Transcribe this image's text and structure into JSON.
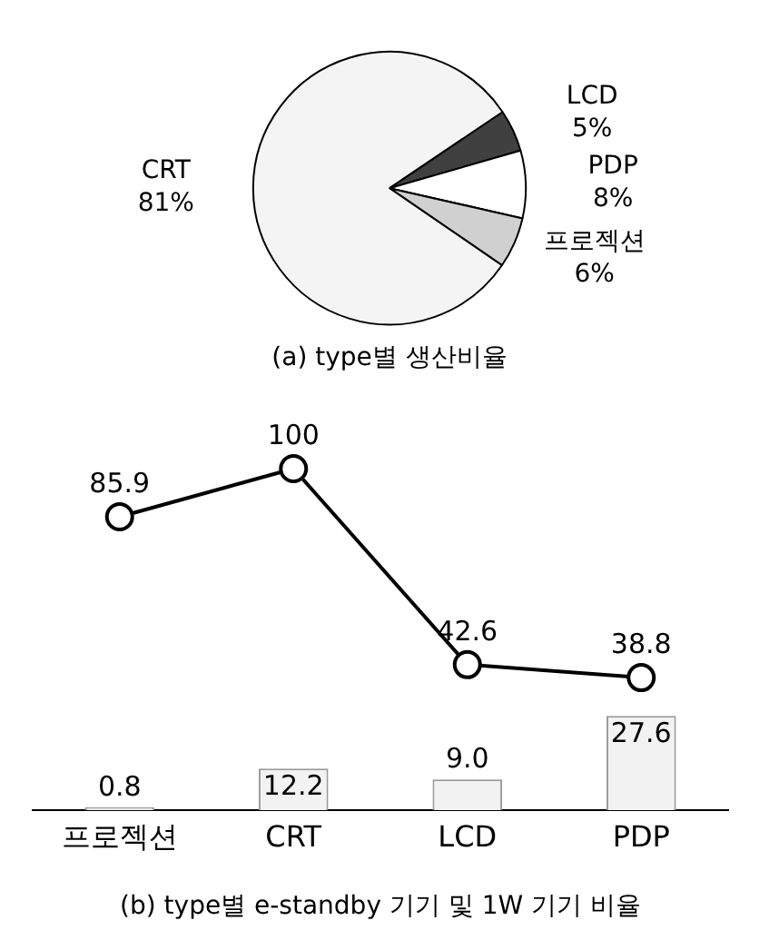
{
  "chart_data": [
    {
      "type": "pie",
      "title": "(a) type별 생산비율",
      "categories": [
        "LCD",
        "PDP",
        "프로젝션",
        "CRT"
      ],
      "values": [
        5,
        8,
        6,
        81
      ],
      "colors": [
        "#404040",
        "#ffffff",
        "#d0d0d0",
        "#f4f4f4"
      ],
      "value_labels": [
        "5%",
        "8%",
        "6%",
        "81%"
      ],
      "legend": false
    },
    {
      "type": "bar",
      "title": "(b) type별 e-standby 기기 및 1W 기기 비율",
      "categories": [
        "프로젝션",
        "CRT",
        "LCD",
        "PDP"
      ],
      "legend": false,
      "grid": false,
      "series": [
        {
          "type": "bar",
          "color": "#f2f2f2",
          "values": [
            0.8,
            12.2,
            9.0,
            27.6
          ],
          "value_labels": [
            "0.8",
            "12.2",
            "9.0",
            "27.6"
          ]
        },
        {
          "type": "line",
          "color": "#000000",
          "values": [
            85.9,
            100,
            42.6,
            38.8
          ],
          "value_labels": [
            "85.9",
            "100",
            "42.6",
            "38.8"
          ],
          "marker": "circle"
        }
      ]
    }
  ]
}
